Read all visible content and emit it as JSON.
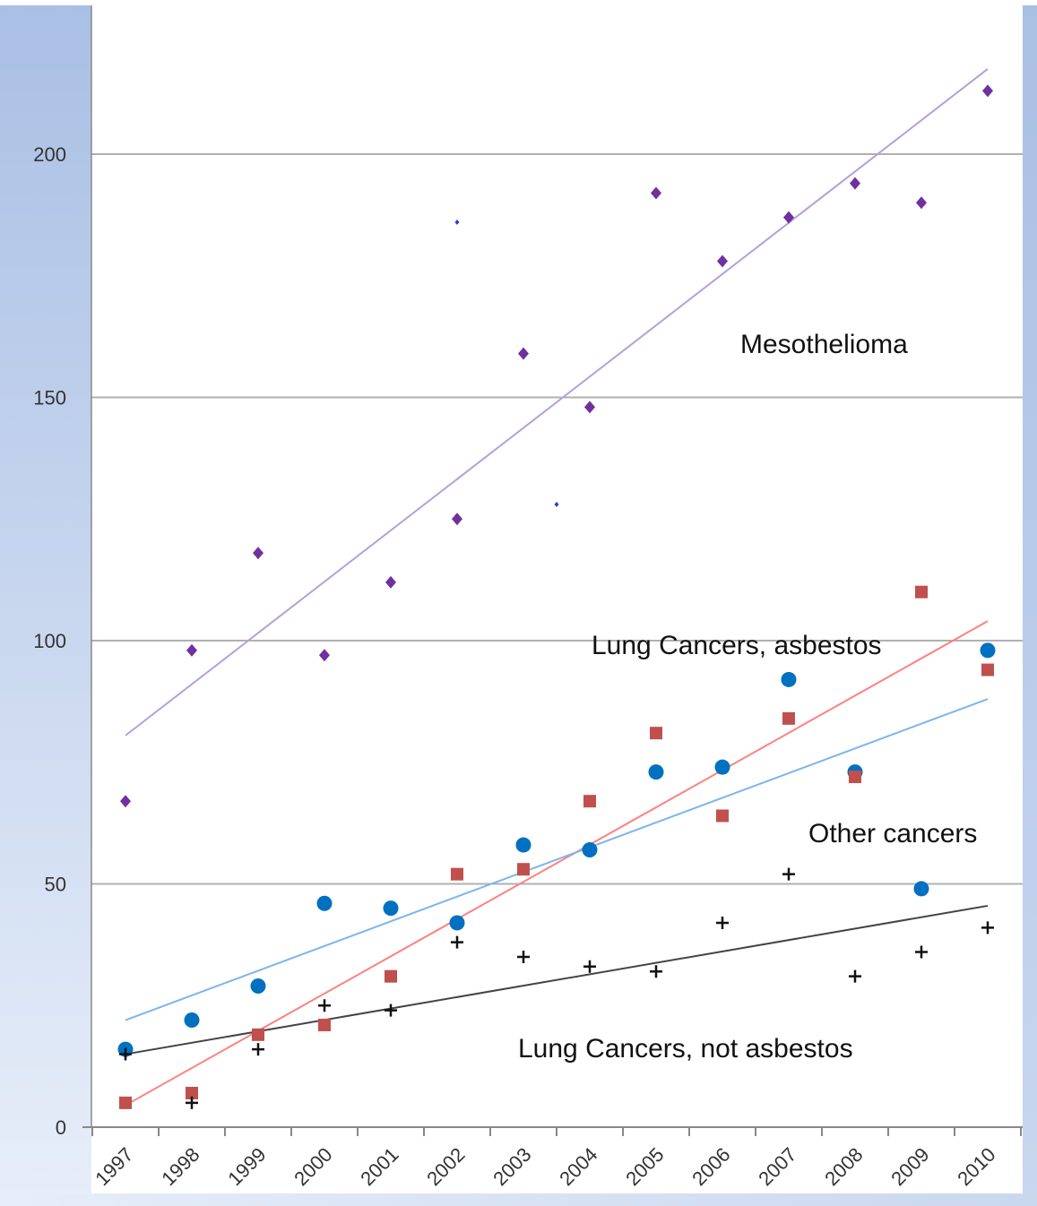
{
  "chart_data": {
    "type": "scatter",
    "title": "",
    "xlabel": "",
    "ylabel": "",
    "x_categories": [
      "1997",
      "1998",
      "1999",
      "2000",
      "2001",
      "2002",
      "2003",
      "2004",
      "2005",
      "2006",
      "2007",
      "2008",
      "2009",
      "2010"
    ],
    "ylim": [
      0,
      220
    ],
    "yticks": [
      "0",
      "50",
      "100",
      "150",
      "200"
    ],
    "grid": true,
    "legend": "none",
    "series": [
      {
        "key": "mesothelioma",
        "marker": "diamond",
        "color": "#7030A0",
        "trend_color": "#B4A0D8",
        "values": [
          67,
          98,
          118,
          97,
          112,
          125,
          159,
          148,
          192,
          178,
          187,
          194,
          190,
          213
        ],
        "trend": [
          80.5,
          217.5
        ]
      },
      {
        "key": "lung-asbestos",
        "marker": "square",
        "color": "#C0504D",
        "trend_color": "#FF8080",
        "values": [
          5,
          7,
          19,
          21,
          31,
          52,
          53,
          67,
          81,
          64,
          84,
          72,
          110,
          94
        ],
        "trend": [
          4.5,
          104
        ]
      },
      {
        "key": "other-cancers",
        "marker": "circle",
        "color": "#0070C0",
        "trend_color": "#7CB5EC",
        "values": [
          16,
          22,
          29,
          46,
          45,
          42,
          58,
          57,
          73,
          74,
          92,
          73,
          49,
          98
        ],
        "trend": [
          22,
          88
        ]
      },
      {
        "key": "lung-not-asbestos",
        "marker": "plus",
        "color": "#111111",
        "trend_color": "#444444",
        "values": [
          15,
          5,
          16,
          25,
          24,
          38,
          35,
          33,
          32,
          42,
          52,
          31,
          36,
          41
        ],
        "trend": [
          15,
          45.5
        ]
      }
    ],
    "stray_points": [
      {
        "x": 5.5,
        "y": 186
      },
      {
        "x": 7.0,
        "y": 128
      }
    ],
    "annotations": [
      {
        "key": "mesothelioma",
        "text": "Mesothelioma"
      },
      {
        "key": "lung-asbestos",
        "text": "Lung Cancers, asbestos"
      },
      {
        "key": "other-cancers",
        "text": "Other cancers"
      },
      {
        "key": "lung-not-asbestos",
        "text": "Lung Cancers, not asbestos"
      }
    ]
  }
}
